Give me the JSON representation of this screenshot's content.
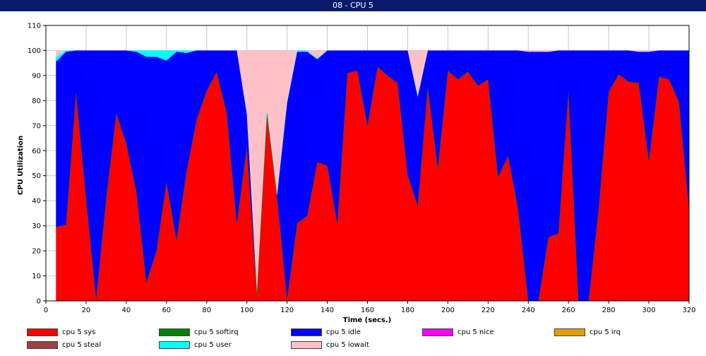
{
  "window": {
    "title": "08 - CPU 5"
  },
  "chart_data": {
    "type": "area",
    "stacked": true,
    "title": "",
    "xlabel": "Time (secs.)",
    "ylabel": "CPU Utilization",
    "xlim": [
      0,
      320
    ],
    "ylim": [
      0,
      110
    ],
    "xticks": [
      0,
      20,
      40,
      60,
      80,
      100,
      120,
      140,
      160,
      180,
      200,
      220,
      240,
      260,
      280,
      300,
      320
    ],
    "yticks": [
      0,
      10,
      20,
      30,
      40,
      50,
      60,
      70,
      80,
      90,
      100,
      110
    ],
    "grid": true,
    "legend_position": "bottom",
    "x": [
      5,
      10,
      15,
      20,
      25,
      30,
      35,
      40,
      45,
      50,
      55,
      60,
      65,
      70,
      75,
      80,
      85,
      90,
      95,
      100,
      105,
      110,
      115,
      120,
      125,
      130,
      135,
      140,
      145,
      150,
      155,
      160,
      165,
      170,
      175,
      180,
      185,
      190,
      195,
      200,
      205,
      210,
      215,
      220,
      225,
      230,
      235,
      240,
      245,
      250,
      255,
      260,
      265,
      270,
      275,
      280,
      285,
      290,
      295,
      300,
      305,
      310,
      315,
      320
    ],
    "series": [
      {
        "name": "cpu 5 sys",
        "color": "#ff0000",
        "values": [
          29.5,
          30.5,
          83.5,
          41,
          1,
          41,
          75,
          63,
          44,
          7.5,
          20,
          47.5,
          24.5,
          52,
          72.5,
          84,
          91.5,
          75,
          31,
          62,
          3,
          75,
          42,
          1,
          31,
          34,
          55.5,
          54,
          31,
          91,
          92,
          70,
          93.5,
          90,
          87,
          50.5,
          38,
          85.5,
          53,
          92,
          88.5,
          91.5,
          86,
          88.5,
          49.5,
          58,
          36.5,
          0,
          0,
          25.5,
          27,
          84,
          0,
          0,
          37,
          83.5,
          90.5,
          87.5,
          87,
          56,
          89.5,
          88.5,
          79.5,
          37
        ]
      },
      {
        "name": "cpu 5 softirq",
        "color": "#008000",
        "values": [
          0,
          0,
          0,
          0,
          0,
          0,
          0,
          0,
          0,
          0,
          0,
          0,
          0,
          0,
          0,
          0,
          0,
          0,
          0,
          0,
          0,
          0,
          0,
          0,
          0,
          0,
          0,
          0,
          0,
          0,
          0,
          0,
          0,
          0,
          0,
          0,
          0,
          0,
          0,
          0,
          0,
          0,
          0,
          0,
          0,
          0,
          0,
          0,
          0,
          0,
          0,
          0,
          0,
          0,
          0,
          0,
          0,
          0,
          0,
          0,
          0,
          0,
          0,
          0
        ]
      },
      {
        "name": "cpu 5 idle",
        "color": "#0000ff",
        "values": [
          66,
          69,
          16.5,
          59,
          99,
          59,
          25,
          37,
          55.5,
          90,
          77.5,
          48.5,
          75,
          47,
          27.5,
          16,
          8.5,
          25,
          69,
          12.5,
          0,
          0,
          0,
          78,
          68.5,
          65.5,
          41,
          46,
          69,
          9,
          8,
          30,
          6.5,
          10,
          13,
          49.5,
          43.5,
          14.5,
          47,
          8,
          11.5,
          8.5,
          14,
          11.5,
          50.5,
          42,
          63.5,
          99.5,
          99.5,
          74,
          73,
          16,
          100,
          100,
          63,
          16.5,
          9.5,
          12.5,
          12.5,
          43.5,
          10.5,
          11.5,
          20.5,
          63
        ]
      },
      {
        "name": "cpu 5 nice",
        "color": "#ff00ff",
        "values": [
          0,
          0,
          0,
          0,
          0,
          0,
          0,
          0,
          0,
          0,
          0,
          0,
          0,
          0,
          0,
          0,
          0,
          0,
          0,
          0,
          0,
          0,
          0,
          0,
          0,
          0,
          0,
          0,
          0,
          0,
          0,
          0,
          0,
          0,
          0,
          0,
          0,
          0,
          0,
          0,
          0,
          0,
          0,
          0,
          0,
          0,
          0,
          0,
          0,
          0,
          0,
          0,
          0,
          0,
          0,
          0,
          0,
          0,
          0,
          0,
          0,
          0,
          0,
          0
        ]
      },
      {
        "name": "cpu 5 irq",
        "color": "#e0a000",
        "values": [
          0,
          0,
          0,
          0,
          0,
          0,
          0,
          0,
          0,
          0,
          0,
          0,
          0,
          0,
          0,
          0,
          0,
          0,
          0,
          0,
          0,
          0,
          0,
          0,
          0,
          0,
          0,
          0,
          0,
          0,
          0,
          0,
          0,
          0,
          0,
          0,
          0,
          0,
          0,
          0,
          0,
          0,
          0,
          0,
          0,
          0,
          0,
          0,
          0,
          0,
          0,
          0,
          0,
          0,
          0,
          0,
          0,
          0,
          0,
          0,
          0,
          0,
          0,
          0
        ]
      },
      {
        "name": "cpu 5 steal",
        "color": "#a04040",
        "values": [
          0,
          0,
          0,
          0,
          0,
          0,
          0,
          0,
          0,
          0,
          0,
          0,
          0,
          0,
          0,
          0,
          0,
          0,
          0,
          0,
          0,
          0,
          0,
          0,
          0,
          0,
          0,
          0,
          0,
          0,
          0,
          0,
          0,
          0,
          0,
          0,
          0,
          0,
          0,
          0,
          0,
          0,
          0,
          0,
          0,
          0,
          0,
          0,
          0,
          0,
          0,
          0,
          0,
          0,
          0,
          0,
          0,
          0,
          0,
          0,
          0,
          0,
          0,
          0
        ]
      },
      {
        "name": "cpu 5 user",
        "color": "#00ffff",
        "values": [
          2,
          0.5,
          0,
          0,
          0,
          0,
          0,
          0,
          0.5,
          2.5,
          2.5,
          4,
          0.5,
          1,
          0,
          0,
          0,
          0,
          0,
          0.5,
          0.5,
          1.5,
          0.5,
          0.5,
          0.5,
          0.5,
          0.5,
          0,
          0,
          0,
          0,
          0,
          0,
          0,
          0,
          0,
          0.5,
          0,
          0,
          0,
          0,
          0,
          0,
          0,
          0,
          0,
          0,
          0,
          0,
          0,
          0,
          0,
          0,
          0,
          0,
          0,
          0,
          0,
          0,
          0,
          0,
          0,
          0,
          0
        ]
      },
      {
        "name": "cpu 5 iowait",
        "color": "#ffc0c8",
        "values": [
          2.5,
          0,
          0,
          0,
          0,
          0,
          0,
          0,
          0,
          0,
          0,
          0,
          0,
          0,
          0,
          0,
          0,
          0,
          0,
          25,
          96.5,
          23.5,
          57.5,
          20.5,
          0,
          0,
          3,
          0,
          0,
          0,
          0,
          0,
          0,
          0,
          0,
          0,
          18,
          0,
          0,
          0,
          0,
          0,
          0,
          0,
          0,
          0,
          0,
          0.5,
          0.5,
          0.5,
          0,
          0,
          0,
          0,
          0,
          0,
          0,
          0,
          0.5,
          0.5,
          0,
          0,
          0,
          0
        ]
      }
    ]
  }
}
